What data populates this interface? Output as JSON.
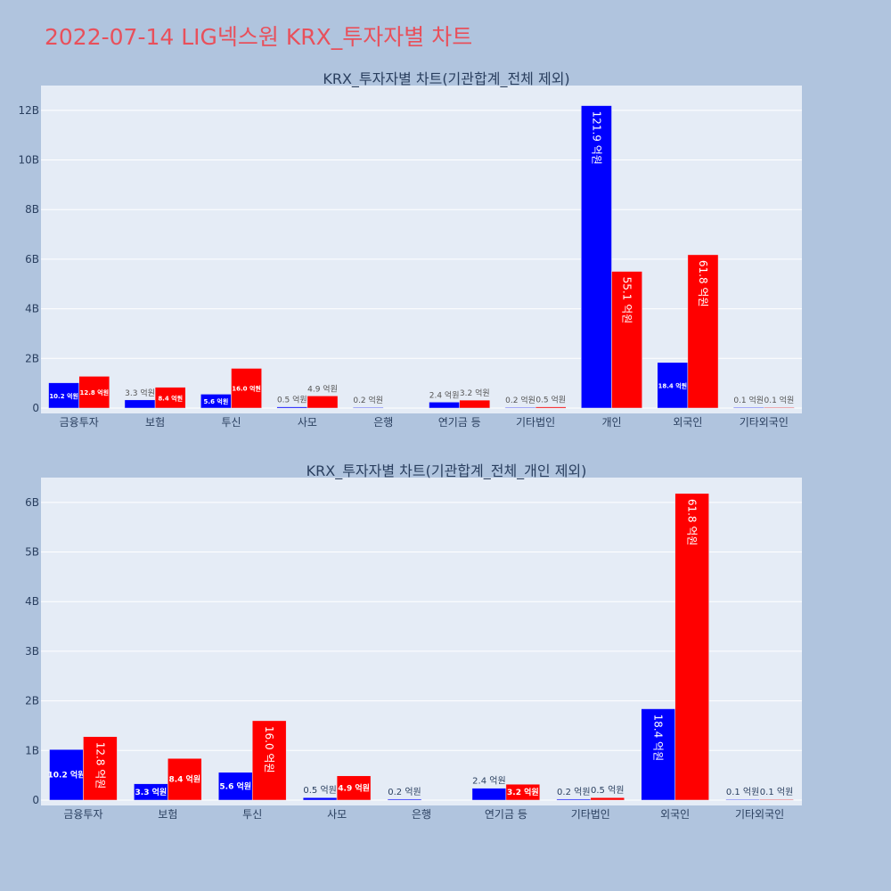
{
  "page": {
    "title": "2022-07-14 LIG넥스원 KRX_투자자별 차트"
  },
  "colors": {
    "background": "#b0c4de",
    "plot_bg": "#e5ecf6",
    "title": "#e8505b",
    "series_a": "#0000ff",
    "series_b": "#ff0000"
  },
  "chart_data": [
    {
      "type": "bar",
      "title": "KRX_투자자별 차트(기관합계_전체 제외)",
      "categories": [
        "금융투자",
        "보험",
        "투신",
        "사모",
        "은행",
        "연기금 등",
        "기타법인",
        "개인",
        "외국인",
        "기타외국인"
      ],
      "ylim": [
        0,
        13
      ],
      "yticks": [
        0,
        2,
        4,
        6,
        8,
        10,
        12
      ],
      "ytick_labels": [
        "0",
        "2B",
        "4B",
        "6B",
        "8B",
        "10B",
        "12B"
      ],
      "grid": true,
      "series": [
        {
          "color": "#0000ff",
          "values": [
            1.02,
            0.33,
            0.56,
            0.05,
            0.02,
            0.24,
            0.02,
            12.19,
            1.84,
            0.01
          ],
          "labels": [
            "10.2 억원",
            "3.3 억원",
            "5.6 억원",
            "0.5 억원",
            "0.2 억원",
            "2.4 억원",
            "0.2 억원",
            "121.9 억원",
            "18.4 억원",
            "0.1 억원"
          ]
        },
        {
          "color": "#ff0000",
          "values": [
            1.28,
            0.84,
            1.6,
            0.49,
            0,
            0.32,
            0.05,
            5.51,
            6.18,
            0.01
          ],
          "labels": [
            "12.8 억원",
            "8.4 억원",
            "16.0 억원",
            "4.9 억원",
            "",
            "3.2 억원",
            "0.5 억원",
            "55.1 억원",
            "61.8 억원",
            "0.1 억원"
          ]
        }
      ]
    },
    {
      "type": "bar",
      "title": "KRX_투자자별 차트(기관합계_전체_개인 제외)",
      "categories": [
        "금융투자",
        "보험",
        "투신",
        "사모",
        "은행",
        "연기금 등",
        "기타법인",
        "외국인",
        "기타외국인"
      ],
      "ylim": [
        0,
        6.5
      ],
      "yticks": [
        0,
        1,
        2,
        3,
        4,
        5,
        6
      ],
      "ytick_labels": [
        "0",
        "1B",
        "2B",
        "3B",
        "4B",
        "5B",
        "6B"
      ],
      "grid": true,
      "series": [
        {
          "color": "#0000ff",
          "values": [
            1.02,
            0.33,
            0.56,
            0.05,
            0.02,
            0.24,
            0.02,
            1.84,
            0.01
          ],
          "labels": [
            "10.2 억원",
            "3.3 억원",
            "5.6 억원",
            "0.5 억원",
            "0.2 억원",
            "2.4 억원",
            "0.2 억원",
            "18.4 억원",
            "0.1 억원"
          ]
        },
        {
          "color": "#ff0000",
          "values": [
            1.28,
            0.84,
            1.6,
            0.49,
            0,
            0.32,
            0.05,
            6.18,
            0.01
          ],
          "labels": [
            "12.8 억원",
            "8.4 억원",
            "16.0 억원",
            "4.9 억원",
            "",
            "3.2 억원",
            "0.5 억원",
            "61.8 억원",
            "0.1 억원"
          ]
        }
      ]
    }
  ]
}
